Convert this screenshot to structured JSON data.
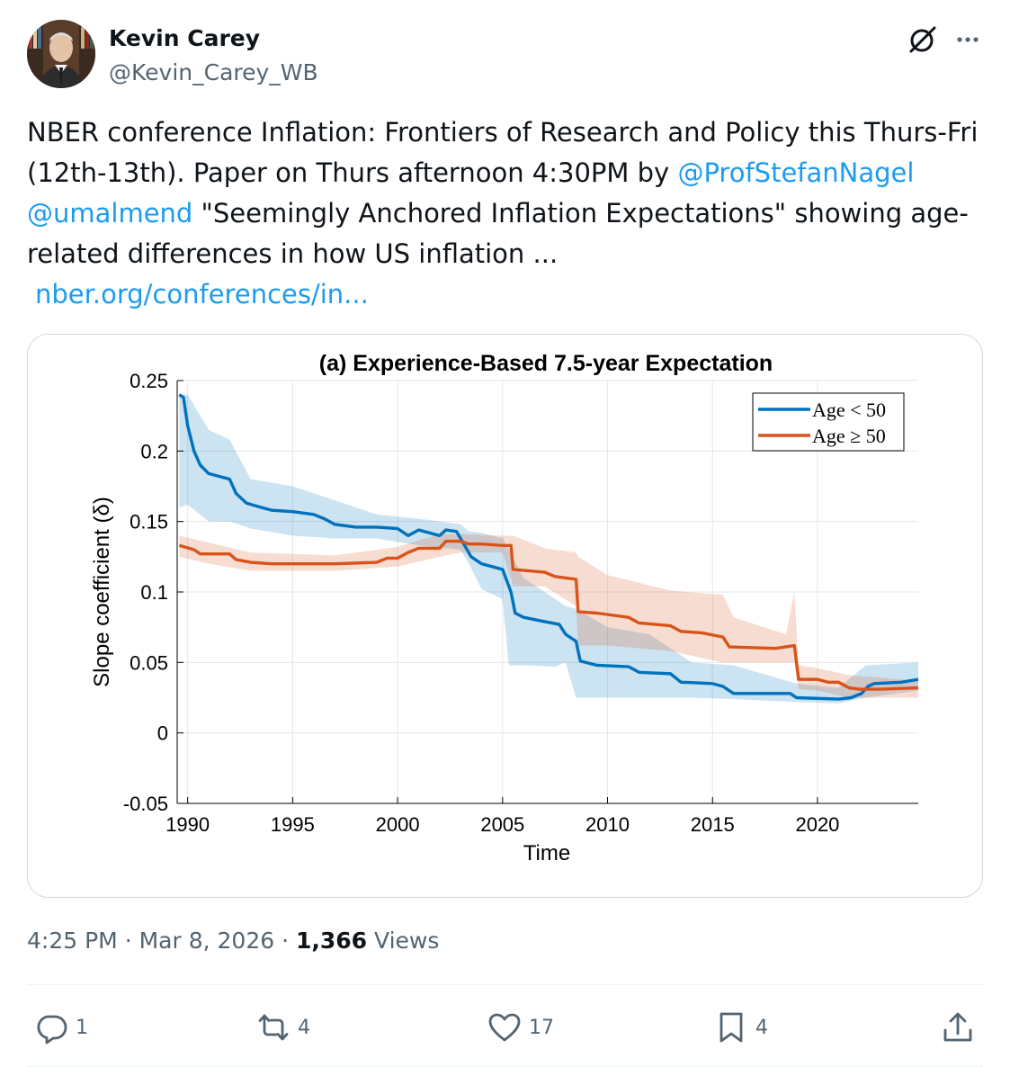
{
  "author": {
    "name": "Kevin Carey",
    "handle": "@Kevin_Carey_WB"
  },
  "tweet": {
    "part1": "NBER conference Inflation: Frontiers of Research and Policy this Thurs-Fri (12th-13th). Paper on Thurs afternoon 4:30PM by ",
    "mention1": "@ProfStefanNagel",
    "part2": " ",
    "mention2": "@umalmend",
    "part3": " \"Seemingly Anchored Inflation Expectations\" showing age-related differences in how US inflation ...",
    "link": "nber.org/conferences/in..."
  },
  "meta": {
    "time": "4:25 PM",
    "separator": "·",
    "date": "Mar 8, 2026",
    "views_count": "1,366",
    "views_label": "Views"
  },
  "actions": {
    "replies": "1",
    "reposts": "4",
    "likes": "17",
    "bookmarks": "4"
  },
  "icons": [
    "grok-icon",
    "more-icon",
    "reply-icon",
    "repost-icon",
    "like-icon",
    "bookmark-icon",
    "share-icon"
  ],
  "colors": {
    "link": "#1d9bf0",
    "text": "#0f1419",
    "secondary": "#536471",
    "series_young": "#0072bd",
    "series_old": "#d95319"
  },
  "chart_data": {
    "type": "line",
    "title": "(a) Experience-Based 7.5-year Expectation",
    "xlabel": "Time",
    "ylabel": "Slope coefficient (δ)",
    "xlim": [
      1989.5,
      2024.8
    ],
    "ylim": [
      -0.05,
      0.25
    ],
    "xticks": [
      1990,
      1995,
      2000,
      2005,
      2010,
      2015,
      2020
    ],
    "xtick_labels": [
      "1990",
      "1995",
      "2000",
      "2005",
      "2010",
      "2015",
      "2020"
    ],
    "yticks": [
      -0.05,
      0,
      0.05,
      0.1,
      0.15,
      0.2,
      0.25
    ],
    "ytick_labels": [
      "-0.05",
      "0",
      "0.05",
      "0.1",
      "0.15",
      "0.2",
      "0.25"
    ],
    "grid": true,
    "legend_position": "top-right",
    "series": [
      {
        "name": "Age < 50",
        "color": "#0072bd",
        "points": [
          [
            1989.6,
            0.24
          ],
          [
            1989.8,
            0.238
          ],
          [
            1990.0,
            0.218
          ],
          [
            1990.3,
            0.2
          ],
          [
            1990.6,
            0.19
          ],
          [
            1991.0,
            0.184
          ],
          [
            1991.5,
            0.182
          ],
          [
            1992.0,
            0.18
          ],
          [
            1992.3,
            0.17
          ],
          [
            1992.8,
            0.163
          ],
          [
            1993.5,
            0.16
          ],
          [
            1994.0,
            0.158
          ],
          [
            1995.0,
            0.157
          ],
          [
            1996.0,
            0.155
          ],
          [
            1996.5,
            0.152
          ],
          [
            1997.0,
            0.148
          ],
          [
            1998.0,
            0.146
          ],
          [
            1999.0,
            0.146
          ],
          [
            2000.0,
            0.145
          ],
          [
            2000.5,
            0.14
          ],
          [
            2001.0,
            0.144
          ],
          [
            2002.0,
            0.14
          ],
          [
            2002.3,
            0.144
          ],
          [
            2002.8,
            0.143
          ],
          [
            2003.0,
            0.138
          ],
          [
            2003.5,
            0.125
          ],
          [
            2004.0,
            0.12
          ],
          [
            2004.5,
            0.118
          ],
          [
            2005.0,
            0.116
          ],
          [
            2005.4,
            0.1
          ],
          [
            2005.6,
            0.085
          ],
          [
            2006.0,
            0.082
          ],
          [
            2007.0,
            0.079
          ],
          [
            2007.7,
            0.077
          ],
          [
            2008.0,
            0.07
          ],
          [
            2008.5,
            0.065
          ],
          [
            2008.7,
            0.051
          ],
          [
            2009.5,
            0.048
          ],
          [
            2011.0,
            0.047
          ],
          [
            2011.5,
            0.043
          ],
          [
            2013.0,
            0.042
          ],
          [
            2013.5,
            0.036
          ],
          [
            2015.0,
            0.035
          ],
          [
            2015.5,
            0.033
          ],
          [
            2016.0,
            0.028
          ],
          [
            2018.7,
            0.028
          ],
          [
            2019.0,
            0.025
          ],
          [
            2021.0,
            0.024
          ],
          [
            2021.6,
            0.025
          ],
          [
            2022.1,
            0.028
          ],
          [
            2022.4,
            0.033
          ],
          [
            2022.7,
            0.035
          ],
          [
            2024.0,
            0.036
          ],
          [
            2024.8,
            0.038
          ]
        ],
        "band": [
          [
            1989.6,
            0.16,
            0.24
          ],
          [
            1990.0,
            0.162,
            0.24
          ],
          [
            1991.0,
            0.15,
            0.215
          ],
          [
            1992.0,
            0.15,
            0.208
          ],
          [
            1993.0,
            0.145,
            0.18
          ],
          [
            1995.0,
            0.14,
            0.175
          ],
          [
            1997.0,
            0.138,
            0.165
          ],
          [
            1999.0,
            0.138,
            0.155
          ],
          [
            2001.0,
            0.133,
            0.152
          ],
          [
            2003.0,
            0.13,
            0.148
          ],
          [
            2003.4,
            0.12,
            0.143
          ],
          [
            2004.0,
            0.102,
            0.142
          ],
          [
            2005.0,
            0.095,
            0.138
          ],
          [
            2005.3,
            0.048,
            0.13
          ],
          [
            2006.0,
            0.048,
            0.11
          ],
          [
            2007.5,
            0.047,
            0.095
          ],
          [
            2008.0,
            0.05,
            0.09
          ],
          [
            2008.5,
            0.025,
            0.088
          ],
          [
            2010.0,
            0.025,
            0.075
          ],
          [
            2012.0,
            0.025,
            0.07
          ],
          [
            2014.0,
            0.025,
            0.05
          ],
          [
            2016.0,
            0.024,
            0.048
          ],
          [
            2019.0,
            0.022,
            0.035
          ],
          [
            2021.0,
            0.021,
            0.032
          ],
          [
            2022.3,
            0.025,
            0.048
          ],
          [
            2024.8,
            0.03,
            0.05
          ]
        ]
      },
      {
        "name": "Age ≥ 50",
        "color": "#d95319",
        "points": [
          [
            1989.6,
            0.133
          ],
          [
            1990.3,
            0.13
          ],
          [
            1990.6,
            0.127
          ],
          [
            1992.0,
            0.127
          ],
          [
            1992.3,
            0.123
          ],
          [
            1993.0,
            0.121
          ],
          [
            1994.0,
            0.12
          ],
          [
            1996.0,
            0.12
          ],
          [
            1997.0,
            0.12
          ],
          [
            1999.0,
            0.121
          ],
          [
            1999.5,
            0.124
          ],
          [
            2000.0,
            0.124
          ],
          [
            2000.5,
            0.128
          ],
          [
            2001.0,
            0.131
          ],
          [
            2002.0,
            0.131
          ],
          [
            2002.3,
            0.136
          ],
          [
            2003.0,
            0.136
          ],
          [
            2003.4,
            0.134
          ],
          [
            2004.0,
            0.134
          ],
          [
            2005.0,
            0.133
          ],
          [
            2005.4,
            0.133
          ],
          [
            2005.5,
            0.116
          ],
          [
            2007.0,
            0.114
          ],
          [
            2007.5,
            0.111
          ],
          [
            2008.5,
            0.109
          ],
          [
            2008.6,
            0.086
          ],
          [
            2009.5,
            0.085
          ],
          [
            2011.0,
            0.082
          ],
          [
            2011.5,
            0.078
          ],
          [
            2013.0,
            0.076
          ],
          [
            2013.5,
            0.072
          ],
          [
            2014.5,
            0.071
          ],
          [
            2015.5,
            0.068
          ],
          [
            2015.8,
            0.061
          ],
          [
            2018.0,
            0.06
          ],
          [
            2018.9,
            0.062
          ],
          [
            2019.1,
            0.038
          ],
          [
            2020.0,
            0.038
          ],
          [
            2020.5,
            0.036
          ],
          [
            2021.0,
            0.036
          ],
          [
            2021.5,
            0.032
          ],
          [
            2022.0,
            0.031
          ],
          [
            2023.0,
            0.031
          ],
          [
            2024.8,
            0.032
          ]
        ],
        "band": [
          [
            1989.6,
            0.125,
            0.14
          ],
          [
            1991.0,
            0.12,
            0.135
          ],
          [
            1993.0,
            0.115,
            0.128
          ],
          [
            1997.0,
            0.115,
            0.126
          ],
          [
            2000.0,
            0.118,
            0.132
          ],
          [
            2002.0,
            0.125,
            0.141
          ],
          [
            2003.0,
            0.128,
            0.141
          ],
          [
            2005.0,
            0.128,
            0.14
          ],
          [
            2005.5,
            0.104,
            0.14
          ],
          [
            2007.0,
            0.104,
            0.131
          ],
          [
            2008.5,
            0.09,
            0.128
          ],
          [
            2008.6,
            0.062,
            0.125
          ],
          [
            2010.0,
            0.062,
            0.112
          ],
          [
            2013.0,
            0.058,
            0.101
          ],
          [
            2015.5,
            0.05,
            0.098
          ],
          [
            2016.0,
            0.05,
            0.082
          ],
          [
            2018.5,
            0.05,
            0.07
          ],
          [
            2018.9,
            0.05,
            0.1
          ],
          [
            2019.1,
            0.031,
            0.048
          ],
          [
            2020.0,
            0.03,
            0.046
          ],
          [
            2021.5,
            0.025,
            0.041
          ],
          [
            2024.8,
            0.025,
            0.037
          ]
        ]
      }
    ]
  }
}
